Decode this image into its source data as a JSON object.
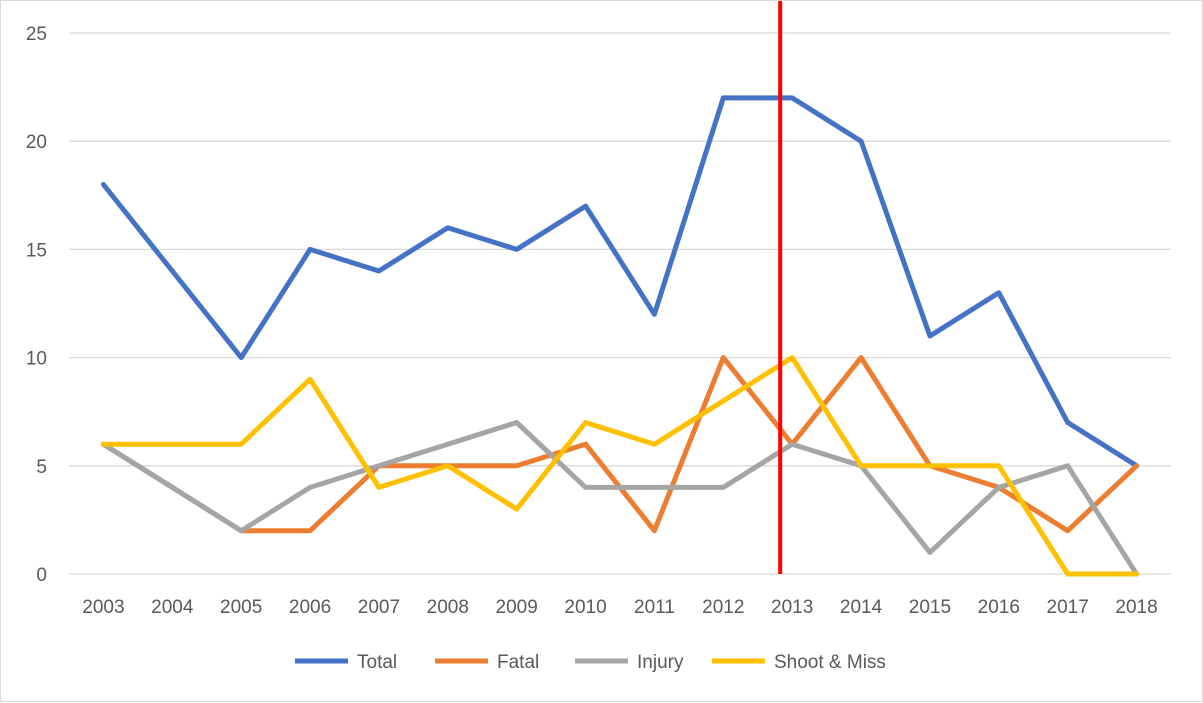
{
  "chart_data": {
    "type": "line",
    "title": "",
    "xlabel": "",
    "ylabel": "",
    "x": [
      "2003",
      "2004",
      "2005",
      "2006",
      "2007",
      "2008",
      "2009",
      "2010",
      "2011",
      "2012",
      "2013",
      "2014",
      "2015",
      "2016",
      "2017",
      "2018"
    ],
    "ylim": [
      0,
      25
    ],
    "yticks": [
      0,
      5,
      10,
      15,
      20,
      25
    ],
    "grid": true,
    "legend_position": "bottom",
    "series": [
      {
        "name": "Total",
        "color": "#4472c4",
        "values": [
          18,
          14,
          10,
          15,
          14,
          16,
          15,
          17,
          12,
          22,
          22,
          20,
          11,
          13,
          7,
          5
        ]
      },
      {
        "name": "Fatal",
        "color": "#ed7d31",
        "values": [
          6,
          4,
          2,
          2,
          5,
          5,
          5,
          6,
          2,
          10,
          6,
          10,
          5,
          4,
          2,
          5
        ]
      },
      {
        "name": "Injury",
        "color": "#a5a5a5",
        "values": [
          6,
          4,
          2,
          4,
          5,
          6,
          7,
          4,
          4,
          4,
          6,
          5,
          1,
          4,
          5,
          0
        ]
      },
      {
        "name": "Shoot & Miss",
        "color": "#ffc000",
        "values": [
          6,
          6,
          6,
          9,
          4,
          5,
          3,
          7,
          6,
          8,
          10,
          5,
          5,
          5,
          0,
          0
        ]
      }
    ],
    "reference_line": {
      "x": "2013",
      "color": "#ff0000"
    }
  }
}
